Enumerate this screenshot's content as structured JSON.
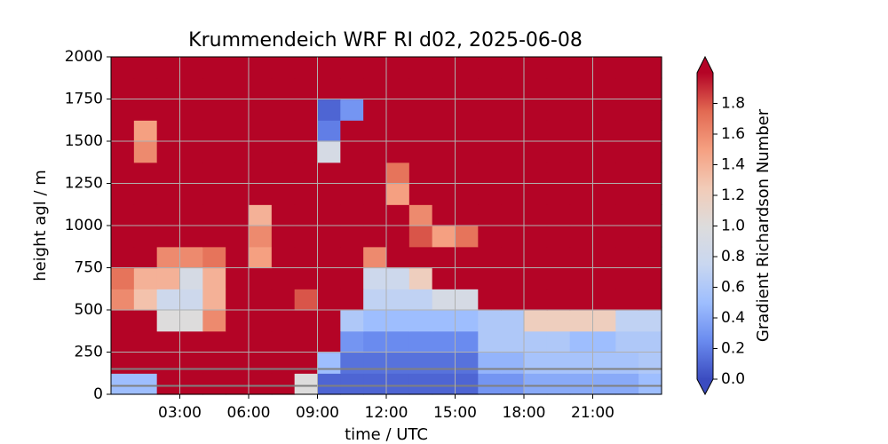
{
  "chart_data": {
    "type": "heatmap",
    "title": "Krummendeich WRF RI d02, 2025-06-08",
    "x_label": "time / UTC",
    "y_label": "height agl / m",
    "colorbar_label": "Gradient Richardson Number",
    "x": [
      0,
      1,
      2,
      3,
      4,
      5,
      6,
      7,
      8,
      9,
      10,
      11,
      12,
      13,
      14,
      15,
      16,
      17,
      18,
      19,
      20,
      21,
      22,
      23,
      24
    ],
    "y": [
      0,
      125,
      250,
      375,
      500,
      625,
      750,
      875,
      1000,
      1125,
      1250,
      1375,
      1500,
      1625,
      1750,
      1875,
      2000
    ],
    "z": [
      [
        0.5,
        0.5,
        2,
        2,
        2,
        2,
        2,
        2,
        1.0,
        0.1,
        0.1,
        0.1,
        0.1,
        0.1,
        0.1,
        0.1,
        0.3,
        0.3,
        0.4,
        0.4,
        0.4,
        0.4,
        0.4,
        0.5
      ],
      [
        2,
        2,
        2,
        2,
        2,
        2,
        2,
        2,
        2,
        0.5,
        0.15,
        0.15,
        0.15,
        0.15,
        0.15,
        0.15,
        0.45,
        0.45,
        0.55,
        0.55,
        0.55,
        0.55,
        0.55,
        0.6
      ],
      [
        2,
        2,
        2,
        2,
        2,
        2,
        2,
        2,
        2,
        2,
        0.3,
        0.25,
        0.25,
        0.25,
        0.25,
        0.25,
        0.6,
        0.6,
        0.6,
        0.6,
        0.5,
        0.5,
        0.6,
        0.6
      ],
      [
        2,
        2,
        1.0,
        1.0,
        1.6,
        2,
        2,
        2,
        2,
        2,
        0.6,
        0.5,
        0.5,
        0.5,
        0.5,
        0.5,
        0.6,
        0.6,
        1.2,
        1.2,
        1.2,
        1.2,
        0.7,
        0.7
      ],
      [
        1.6,
        1.3,
        0.8,
        0.8,
        1.4,
        2,
        2,
        2,
        1.8,
        2,
        2,
        0.7,
        0.7,
        0.7,
        0.9,
        0.9,
        2,
        2,
        2,
        2,
        2,
        2,
        2,
        2
      ],
      [
        1.7,
        1.4,
        1.4,
        0.9,
        1.4,
        2,
        2,
        2,
        2,
        2,
        2,
        0.8,
        0.8,
        1.2,
        2,
        2,
        2,
        2,
        2,
        2,
        2,
        2,
        2,
        2
      ],
      [
        2,
        2,
        1.6,
        1.6,
        1.7,
        2,
        1.5,
        2,
        2,
        2,
        2,
        1.6,
        2,
        2,
        2,
        2,
        2,
        2,
        2,
        2,
        2,
        2,
        2,
        2
      ],
      [
        2,
        2,
        2,
        2,
        2,
        2,
        1.6,
        2,
        2,
        2,
        2,
        2,
        2,
        1.8,
        1.5,
        1.7,
        2,
        2,
        2,
        2,
        2,
        2,
        2,
        2
      ],
      [
        2,
        2,
        2,
        2,
        2,
        2,
        1.4,
        2,
        2,
        2,
        2,
        2,
        2,
        1.6,
        2,
        2,
        2,
        2,
        2,
        2,
        2,
        2,
        2,
        2
      ],
      [
        2,
        2,
        2,
        2,
        2,
        2,
        2,
        2,
        2,
        2,
        2,
        2,
        1.5,
        2,
        2,
        2,
        2,
        2,
        2,
        2,
        2,
        2,
        2,
        2
      ],
      [
        2,
        2,
        2,
        2,
        2,
        2,
        2,
        2,
        2,
        2,
        2,
        2,
        1.7,
        2,
        2,
        2,
        2,
        2,
        2,
        2,
        2,
        2,
        2,
        2
      ],
      [
        2,
        1.6,
        2,
        2,
        2,
        2,
        2,
        2,
        2,
        0.9,
        2,
        2,
        2,
        2,
        2,
        2,
        2,
        2,
        2,
        2,
        2,
        2,
        2,
        2
      ],
      [
        2,
        1.5,
        2,
        2,
        2,
        2,
        2,
        2,
        2,
        0.2,
        2,
        2,
        2,
        2,
        2,
        2,
        2,
        2,
        2,
        2,
        2,
        2,
        2,
        2
      ],
      [
        2,
        2,
        2,
        2,
        2,
        2,
        2,
        2,
        2,
        0.1,
        0.3,
        2,
        2,
        2,
        2,
        2,
        2,
        2,
        2,
        2,
        2,
        2,
        2,
        2
      ],
      [
        2,
        2,
        2,
        2,
        2,
        2,
        2,
        2,
        2,
        2,
        2,
        2,
        2,
        2,
        2,
        2,
        2,
        2,
        2,
        2,
        2,
        2,
        2,
        2
      ],
      [
        2,
        2,
        2,
        2,
        2,
        2,
        2,
        2,
        2,
        2,
        2,
        2,
        2,
        2,
        2,
        2,
        2,
        2,
        2,
        2,
        2,
        2,
        2,
        2
      ]
    ],
    "xlim": [
      0,
      24
    ],
    "ylim": [
      0,
      2000
    ],
    "zlim": [
      0,
      2.0
    ],
    "xticks": [
      {
        "value": 3,
        "label": "03:00"
      },
      {
        "value": 6,
        "label": "06:00"
      },
      {
        "value": 9,
        "label": "09:00"
      },
      {
        "value": 12,
        "label": "12:00"
      },
      {
        "value": 15,
        "label": "15:00"
      },
      {
        "value": 18,
        "label": "18:00"
      },
      {
        "value": 21,
        "label": "21:00"
      }
    ],
    "yticks": [
      0,
      250,
      500,
      750,
      1000,
      1250,
      1500,
      1750,
      2000
    ],
    "zticks": [
      {
        "value": 0,
        "label": "0.0"
      },
      {
        "value": 0.2,
        "label": "0.2"
      },
      {
        "value": 0.4,
        "label": "0.4"
      },
      {
        "value": 0.6,
        "label": "0.6"
      },
      {
        "value": 0.8,
        "label": "0.8"
      },
      {
        "value": 1.0,
        "label": "1.0"
      },
      {
        "value": 1.2,
        "label": "1.2"
      },
      {
        "value": 1.4,
        "label": "1.4"
      },
      {
        "value": 1.6,
        "label": "1.6"
      },
      {
        "value": 1.8,
        "label": "1.8"
      }
    ],
    "colormap": [
      "#3b4cc0",
      "#6a8bef",
      "#9ebefe",
      "#c9d7f0",
      "#dddcdc",
      "#f2cbb7",
      "#f5a081",
      "#e26952",
      "#b40426"
    ],
    "hlines": [
      50,
      150
    ],
    "hline_color": "#808080",
    "grid": true
  }
}
